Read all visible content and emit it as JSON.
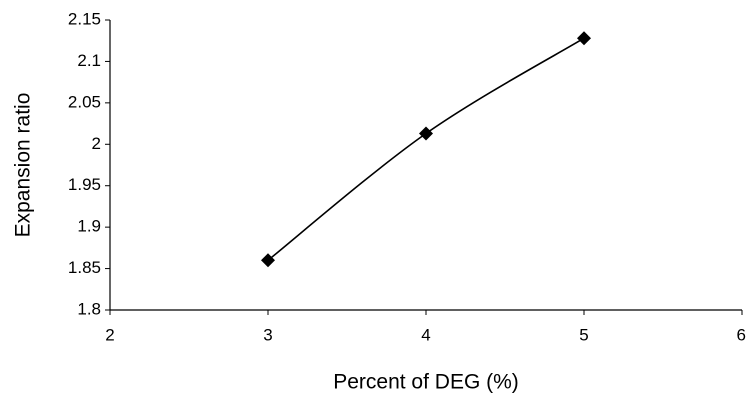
{
  "chart_data": {
    "type": "line",
    "x_label": "Percent of DEG (%)",
    "y_label": "Expansion ratio",
    "x": [
      3,
      4,
      5
    ],
    "values": [
      1.86,
      2.013,
      2.128
    ],
    "color": "#000000",
    "marker": "diamond",
    "smooth": true,
    "grid": false,
    "xlim": [
      2,
      6
    ],
    "xticks": [
      2,
      3,
      4,
      5,
      6
    ],
    "ylim": [
      1.8,
      2.15
    ],
    "yticks": [
      1.8,
      1.85,
      1.9,
      1.95,
      2,
      2.05,
      2.1,
      2.15
    ]
  }
}
